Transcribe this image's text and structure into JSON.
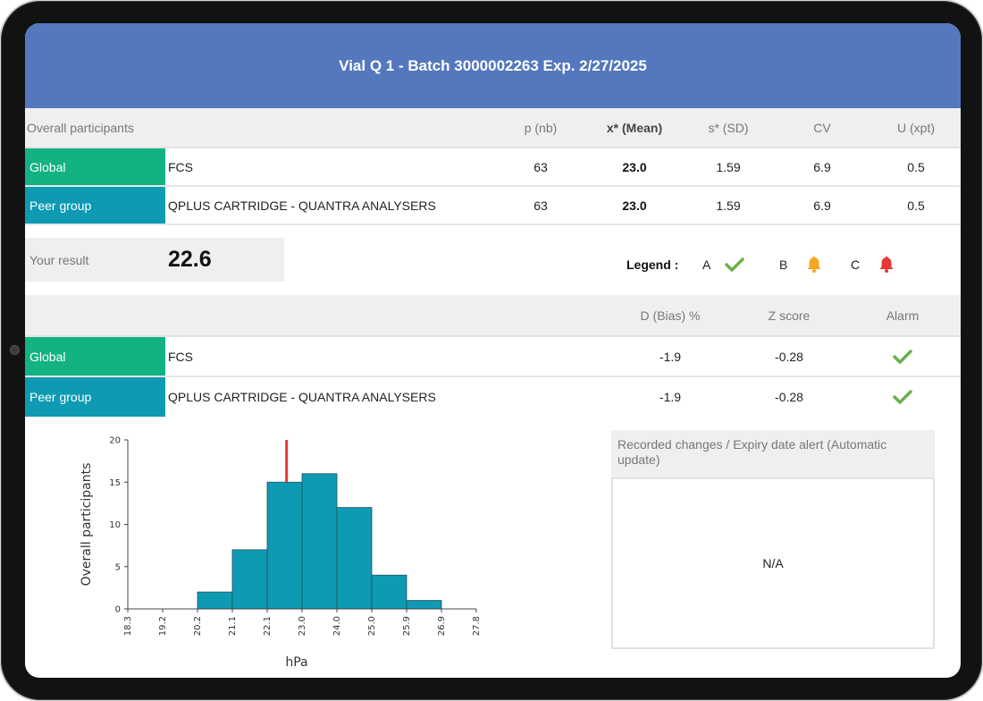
{
  "header": {
    "title": "Vial Q 1 - Batch 3000002263 Exp. 2/27/2025"
  },
  "stats_table": {
    "headers": {
      "label": "Overall participants",
      "p": "p (nb)",
      "mean": "x* (Mean)",
      "sd": "s* (SD)",
      "cv": "CV",
      "u": "U (xpt)"
    },
    "rows": [
      {
        "group": "Global",
        "name": "FCS",
        "p": "63",
        "mean": "23.0",
        "sd": "1.59",
        "cv": "6.9",
        "u": "0.5"
      },
      {
        "group": "Peer group",
        "name": "QPLUS CARTRIDGE - QUANTRA ANALYSERS",
        "p": "63",
        "mean": "23.0",
        "sd": "1.59",
        "cv": "6.9",
        "u": "0.5"
      }
    ]
  },
  "your_result": {
    "label": "Your result",
    "value": "22.6"
  },
  "legend": {
    "title": "Legend :",
    "items": [
      {
        "letter": "A",
        "icon": "check-icon",
        "color": "#6ab04c"
      },
      {
        "letter": "B",
        "icon": "bell-icon",
        "color": "#f5a623"
      },
      {
        "letter": "C",
        "icon": "bell-icon",
        "color": "#e53935"
      }
    ]
  },
  "bias_table": {
    "headers": {
      "bias": "D (Bias) %",
      "z": "Z score",
      "alarm": "Alarm"
    },
    "rows": [
      {
        "group": "Global",
        "name": "FCS",
        "bias": "-1.9",
        "z": "-0.28",
        "alarm": "check-icon"
      },
      {
        "group": "Peer group",
        "name": "QPLUS CARTRIDGE - QUANTRA ANALYSERS",
        "bias": "-1.9",
        "z": "-0.28",
        "alarm": "check-icon"
      }
    ]
  },
  "changes": {
    "title": "Recorded changes / Expiry date alert (Automatic update)",
    "value": "N/A"
  },
  "colors": {
    "header": "#5478bd",
    "global_tag": "#12b283",
    "peer_tag": "#0e9ab2",
    "bar": "#0e9ab2",
    "result_marker": "#e53935"
  },
  "chart_data": {
    "type": "bar",
    "xlabel": "hPa",
    "ylabel": "Overall participants",
    "x_ticks": [
      "18.3",
      "19.2",
      "20.2",
      "21.1",
      "22.1",
      "23.0",
      "24.0",
      "25.0",
      "25.9",
      "26.9",
      "27.8"
    ],
    "y_ticks": [
      "0",
      "5",
      "10",
      "15",
      "20"
    ],
    "ylim": [
      0,
      20
    ],
    "bins": [
      {
        "from": "18.3",
        "to": "19.2",
        "value": 0
      },
      {
        "from": "19.2",
        "to": "20.2",
        "value": 0
      },
      {
        "from": "20.2",
        "to": "21.1",
        "value": 2
      },
      {
        "from": "21.1",
        "to": "22.1",
        "value": 7
      },
      {
        "from": "22.1",
        "to": "23.0",
        "value": 15
      },
      {
        "from": "23.0",
        "to": "24.0",
        "value": 16
      },
      {
        "from": "24.0",
        "to": "25.0",
        "value": 12
      },
      {
        "from": "25.0",
        "to": "25.9",
        "value": 4
      },
      {
        "from": "25.9",
        "to": "26.9",
        "value": 1
      },
      {
        "from": "26.9",
        "to": "27.8",
        "value": 0
      }
    ],
    "result_marker": 22.6,
    "grid": false
  }
}
